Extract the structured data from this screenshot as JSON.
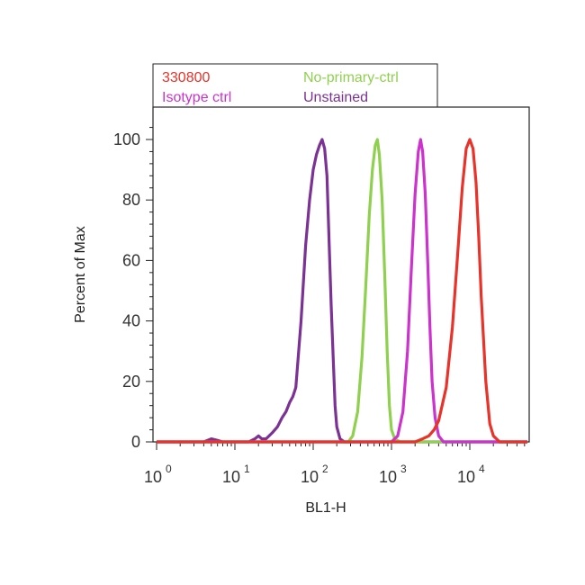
{
  "chart_data": {
    "type": "line",
    "xlabel": "BL1-H",
    "ylabel": "Percent of Max",
    "x_scale": "log",
    "xlim": [
      1,
      60000
    ],
    "ylim": [
      0,
      110
    ],
    "x_ticks": [
      {
        "base": "10",
        "exp": "0",
        "value": 1
      },
      {
        "base": "10",
        "exp": "1",
        "value": 10
      },
      {
        "base": "10",
        "exp": "2",
        "value": 100
      },
      {
        "base": "10",
        "exp": "3",
        "value": 1000
      },
      {
        "base": "10",
        "exp": "4",
        "value": 10000
      }
    ],
    "y_ticks": [
      "0",
      "20",
      "40",
      "60",
      "80",
      "100"
    ],
    "legend": {
      "placement": "top",
      "entries": [
        {
          "label": "330800",
          "color": "#e8332a"
        },
        {
          "label": "No-primary-ctrl",
          "color": "#8fd14f"
        },
        {
          "label": "Isotype ctrl",
          "color": "#cc33cc"
        },
        {
          "label": "Unstained",
          "color": "#7b3294"
        }
      ]
    },
    "series": [
      {
        "name": "Unstained",
        "color": "#7b3294",
        "x": [
          1,
          4,
          5,
          6,
          7,
          15,
          18,
          20,
          22,
          25,
          30,
          35,
          40,
          45,
          50,
          55,
          60,
          70,
          80,
          90,
          100,
          110,
          120,
          130,
          140,
          150,
          160,
          170,
          180,
          190,
          200,
          220,
          250,
          60000
        ],
        "y": [
          0,
          0,
          1,
          0.5,
          0,
          0,
          1,
          2,
          1,
          1,
          3,
          5,
          8,
          10,
          13,
          15,
          18,
          40,
          65,
          80,
          90,
          95,
          98,
          100,
          97,
          88,
          65,
          45,
          28,
          12,
          5,
          1,
          0,
          0
        ]
      },
      {
        "name": "No-primary-ctrl",
        "color": "#8fd14f",
        "x": [
          1,
          280,
          320,
          370,
          420,
          470,
          520,
          570,
          620,
          660,
          700,
          760,
          820,
          880,
          940,
          1000,
          1100,
          1300,
          60000
        ],
        "y": [
          0,
          0,
          2,
          10,
          28,
          52,
          75,
          90,
          98,
          100,
          95,
          80,
          55,
          30,
          12,
          4,
          1,
          0,
          0
        ]
      },
      {
        "name": "Isotype ctrl",
        "color": "#cc33cc",
        "x": [
          1,
          1000,
          1200,
          1400,
          1600,
          1800,
          2000,
          2200,
          2350,
          2500,
          2700,
          2900,
          3100,
          3300,
          3600,
          4000,
          4600,
          60000
        ],
        "y": [
          0,
          0,
          2,
          10,
          30,
          58,
          82,
          96,
          100,
          96,
          82,
          60,
          38,
          20,
          8,
          2,
          0,
          0
        ]
      },
      {
        "name": "330800",
        "color": "#e8332a",
        "x": [
          1,
          2000,
          2500,
          3000,
          3500,
          4000,
          5000,
          6000,
          7000,
          8000,
          9000,
          10000,
          11000,
          12000,
          13000,
          14000,
          16000,
          18000,
          20000,
          24000,
          60000
        ],
        "y": [
          0,
          0,
          1,
          2,
          4,
          7,
          18,
          38,
          62,
          84,
          97,
          100,
          97,
          86,
          68,
          48,
          20,
          6,
          2,
          0,
          0
        ]
      }
    ]
  }
}
